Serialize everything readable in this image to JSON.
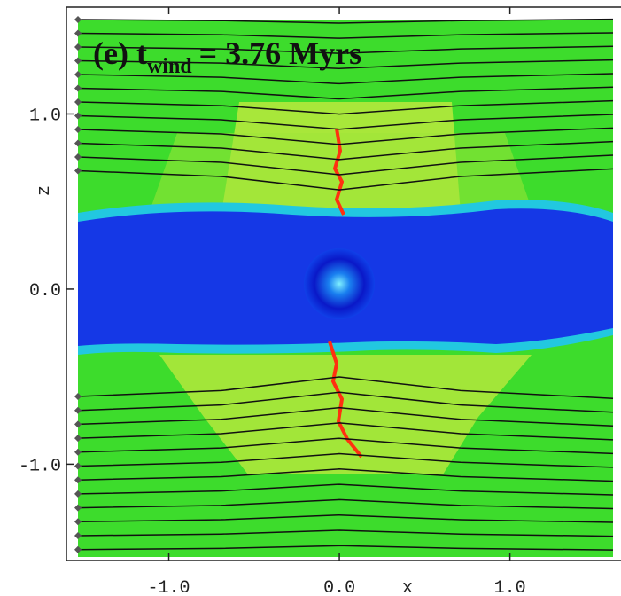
{
  "chart_data": {
    "type": "field",
    "title_parts": [
      "(e) t",
      "wind",
      "= 3.76 Myrs"
    ],
    "x_label": "x",
    "y_label": "z",
    "xlim": [
      -1.6,
      1.62
    ],
    "ylim": [
      -1.55,
      1.6
    ],
    "xticks": [
      {
        "value": -1,
        "label": "-1.0"
      },
      {
        "value": 0,
        "label": "0.0"
      },
      {
        "value": 1,
        "label": "1.0"
      }
    ],
    "yticks": [
      {
        "value": 1,
        "label": "1.0"
      },
      {
        "value": 0,
        "label": "0.0"
      },
      {
        "value": -1,
        "label": "-1.0"
      }
    ]
  }
}
